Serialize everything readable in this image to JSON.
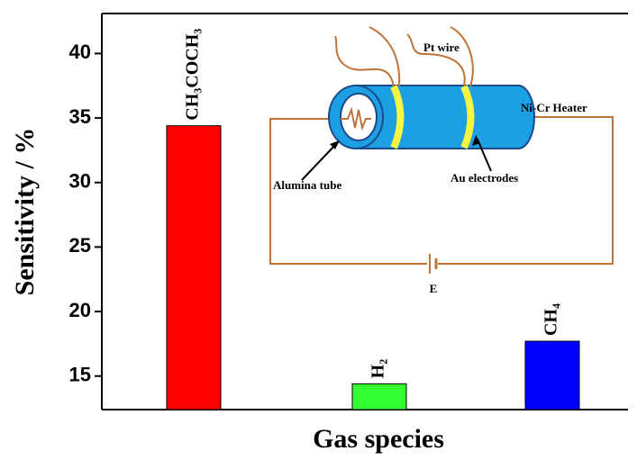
{
  "chart_data": {
    "type": "bar",
    "x_label": "Gas species",
    "y_label": "Sensitivity / %",
    "categories": [
      "CH₃COCH₃",
      "H₂",
      "CH₄"
    ],
    "values": [
      34.4,
      14.4,
      17.7
    ],
    "colors": [
      "#ff0000",
      "#33ff33",
      "#0000ff"
    ],
    "ylim": [
      12.4,
      43.1
    ],
    "yticks": [
      15,
      20,
      25,
      30,
      35,
      40
    ],
    "grid": false
  },
  "inset": {
    "labels": [
      "Pt wire",
      "Ni-Cr Heater",
      "Alumina tube",
      "Au electrodes",
      "E"
    ]
  }
}
